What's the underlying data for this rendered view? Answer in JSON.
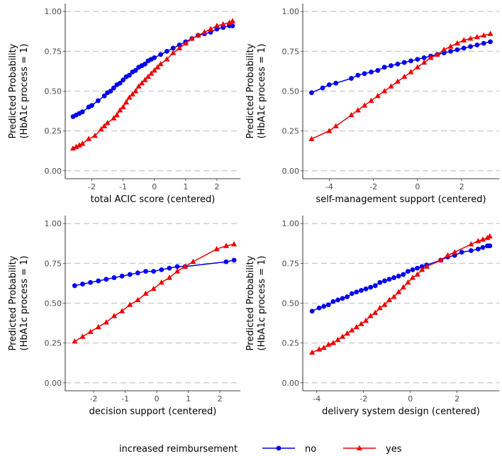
{
  "chart_data": [
    {
      "type": "line",
      "xlabel": "total ACIC score (centered)",
      "ylabel_line1": "Predicted Probability",
      "ylabel_line2": "(HbA1c process = 1)",
      "xticks": [
        -2,
        -1,
        0,
        1,
        2
      ],
      "xtick_labels": [
        "-2",
        "-1",
        "0",
        "1",
        "2"
      ],
      "yticks": [
        0,
        0.25,
        0.5,
        0.75,
        1
      ],
      "ytick_labels": [
        "0.00",
        "0.25",
        "0.50",
        "0.75",
        "1.00"
      ],
      "xlim": [
        -2.85,
        2.75
      ],
      "ylim": [
        -0.05,
        1.05
      ],
      "grid": "horizontal-dashed",
      "series": [
        {
          "name": "no",
          "color": "#0000ee",
          "marker": "circle",
          "x": [
            -2.6,
            -2.5,
            -2.4,
            -2.3,
            -2.1,
            -2.0,
            -1.8,
            -1.6,
            -1.5,
            -1.4,
            -1.3,
            -1.2,
            -1.1,
            -1.0,
            -0.9,
            -0.8,
            -0.7,
            -0.6,
            -0.5,
            -0.4,
            -0.3,
            -0.2,
            -0.1,
            0.0,
            0.2,
            0.4,
            0.6,
            0.8,
            1.0,
            1.2,
            1.4,
            1.6,
            1.8,
            2.0,
            2.2,
            2.4,
            2.5
          ],
          "y": [
            0.34,
            0.35,
            0.36,
            0.37,
            0.4,
            0.41,
            0.44,
            0.47,
            0.49,
            0.5,
            0.52,
            0.54,
            0.55,
            0.57,
            0.59,
            0.6,
            0.62,
            0.63,
            0.65,
            0.66,
            0.67,
            0.69,
            0.7,
            0.71,
            0.73,
            0.75,
            0.77,
            0.79,
            0.81,
            0.83,
            0.85,
            0.86,
            0.87,
            0.89,
            0.9,
            0.91,
            0.91
          ]
        },
        {
          "name": "yes",
          "color": "#ee0000",
          "marker": "triangle",
          "x": [
            -2.6,
            -2.5,
            -2.4,
            -2.3,
            -2.1,
            -1.9,
            -1.7,
            -1.6,
            -1.5,
            -1.3,
            -1.2,
            -1.1,
            -1.0,
            -0.9,
            -0.8,
            -0.7,
            -0.6,
            -0.5,
            -0.4,
            -0.3,
            -0.2,
            -0.1,
            0.0,
            0.1,
            0.2,
            0.4,
            0.6,
            0.8,
            1.0,
            1.2,
            1.4,
            1.6,
            1.8,
            2.0,
            2.2,
            2.4,
            2.5
          ],
          "y": [
            0.14,
            0.15,
            0.16,
            0.17,
            0.2,
            0.22,
            0.26,
            0.28,
            0.3,
            0.33,
            0.35,
            0.38,
            0.4,
            0.43,
            0.46,
            0.48,
            0.5,
            0.53,
            0.55,
            0.57,
            0.59,
            0.61,
            0.63,
            0.65,
            0.67,
            0.7,
            0.74,
            0.77,
            0.8,
            0.83,
            0.85,
            0.87,
            0.89,
            0.91,
            0.92,
            0.93,
            0.94
          ]
        }
      ]
    },
    {
      "type": "line",
      "xlabel": "self-management support (centered)",
      "ylabel_line1": "Predicted Probability",
      "ylabel_line2": "(HbA1c process = 1)",
      "xticks": [
        -4,
        -2,
        0,
        2
      ],
      "xtick_labels": [
        "-4",
        "-2",
        "0",
        "2"
      ],
      "yticks": [
        0,
        0.25,
        0.5,
        0.75,
        1
      ],
      "ytick_labels": [
        "0.00",
        "0.25",
        "0.50",
        "0.75",
        "1.00"
      ],
      "xlim": [
        -5.2,
        3.7
      ],
      "ylim": [
        -0.05,
        1.05
      ],
      "grid": "horizontal-dashed",
      "series": [
        {
          "name": "no",
          "color": "#0000ee",
          "marker": "circle",
          "x": [
            -4.8,
            -4.3,
            -4.0,
            -3.7,
            -3.0,
            -2.7,
            -2.4,
            -2.1,
            -1.8,
            -1.5,
            -1.2,
            -0.9,
            -0.6,
            -0.3,
            0.0,
            0.3,
            0.6,
            0.9,
            1.2,
            1.5,
            1.8,
            2.1,
            2.4,
            2.7,
            3.0,
            3.3
          ],
          "y": [
            0.49,
            0.52,
            0.54,
            0.55,
            0.58,
            0.6,
            0.61,
            0.62,
            0.63,
            0.65,
            0.66,
            0.67,
            0.68,
            0.69,
            0.7,
            0.71,
            0.72,
            0.73,
            0.74,
            0.75,
            0.76,
            0.77,
            0.78,
            0.79,
            0.8,
            0.81
          ]
        },
        {
          "name": "yes",
          "color": "#ee0000",
          "marker": "triangle",
          "x": [
            -4.8,
            -4.0,
            -3.7,
            -3.0,
            -2.7,
            -2.4,
            -2.1,
            -1.8,
            -1.5,
            -1.2,
            -0.9,
            -0.6,
            -0.3,
            0.0,
            0.3,
            0.6,
            0.9,
            1.2,
            1.5,
            1.8,
            2.1,
            2.4,
            2.7,
            3.0,
            3.3
          ],
          "y": [
            0.2,
            0.25,
            0.28,
            0.35,
            0.38,
            0.41,
            0.44,
            0.47,
            0.5,
            0.53,
            0.56,
            0.59,
            0.62,
            0.65,
            0.68,
            0.71,
            0.73,
            0.76,
            0.78,
            0.8,
            0.82,
            0.83,
            0.84,
            0.85,
            0.86
          ]
        }
      ]
    },
    {
      "type": "line",
      "xlabel": "decision support (centered)",
      "ylabel_line1": "Predicted Probability",
      "ylabel_line2": "(HbA1c process = 1)",
      "xticks": [
        -2,
        -1,
        0,
        1,
        2
      ],
      "xtick_labels": [
        "-2",
        "-1",
        "0",
        "1",
        "2"
      ],
      "yticks": [
        0,
        0.25,
        0.5,
        0.75,
        1
      ],
      "ytick_labels": [
        "0.00",
        "0.25",
        "0.50",
        "0.75",
        "1.00"
      ],
      "xlim": [
        -2.9,
        2.65
      ],
      "ylim": [
        -0.05,
        1.05
      ],
      "grid": "horizontal-dashed",
      "series": [
        {
          "name": "no",
          "color": "#0000ee",
          "marker": "circle",
          "x": [
            -2.6,
            -2.35,
            -2.1,
            -1.85,
            -1.6,
            -1.35,
            -1.1,
            -0.85,
            -0.6,
            -0.35,
            -0.1,
            0.15,
            0.4,
            0.65,
            0.9,
            2.2,
            2.45
          ],
          "y": [
            0.61,
            0.62,
            0.63,
            0.64,
            0.65,
            0.66,
            0.67,
            0.68,
            0.69,
            0.7,
            0.7,
            0.71,
            0.72,
            0.73,
            0.73,
            0.76,
            0.77
          ]
        },
        {
          "name": "yes",
          "color": "#ee0000",
          "marker": "triangle",
          "x": [
            -2.6,
            -2.35,
            -2.1,
            -1.85,
            -1.6,
            -1.35,
            -1.1,
            -0.85,
            -0.6,
            -0.35,
            -0.1,
            0.15,
            0.4,
            0.65,
            0.9,
            1.15,
            1.9,
            2.2,
            2.45
          ],
          "y": [
            0.26,
            0.29,
            0.32,
            0.35,
            0.38,
            0.42,
            0.45,
            0.49,
            0.52,
            0.56,
            0.59,
            0.63,
            0.66,
            0.7,
            0.73,
            0.76,
            0.84,
            0.86,
            0.87
          ]
        }
      ]
    },
    {
      "type": "line",
      "xlabel": "delivery system design (centered)",
      "ylabel_line1": "Predicted Probability",
      "ylabel_line2": "(HbA1c process = 1)",
      "xticks": [
        -4,
        -2,
        0,
        2
      ],
      "xtick_labels": [
        "-4",
        "-2",
        "0",
        "2"
      ],
      "yticks": [
        0,
        0.25,
        0.5,
        0.75,
        1
      ],
      "ytick_labels": [
        "0.00",
        "0.25",
        "0.50",
        "0.75",
        "1.00"
      ],
      "xlim": [
        -4.6,
        3.8
      ],
      "ylim": [
        -0.05,
        1.05
      ],
      "grid": "horizontal-dashed",
      "series": [
        {
          "name": "no",
          "color": "#0000ee",
          "marker": "circle",
          "x": [
            -4.2,
            -3.9,
            -3.7,
            -3.5,
            -3.3,
            -3.1,
            -2.9,
            -2.7,
            -2.5,
            -2.3,
            -2.1,
            -1.9,
            -1.7,
            -1.5,
            -1.3,
            -1.1,
            -0.9,
            -0.7,
            -0.5,
            -0.3,
            -0.1,
            0.1,
            0.3,
            0.5,
            0.7,
            1.3,
            1.6,
            1.9,
            2.2,
            2.6,
            2.9,
            3.1,
            3.3,
            3.4
          ],
          "y": [
            0.45,
            0.47,
            0.48,
            0.49,
            0.51,
            0.52,
            0.53,
            0.54,
            0.56,
            0.57,
            0.58,
            0.59,
            0.6,
            0.61,
            0.63,
            0.64,
            0.65,
            0.66,
            0.67,
            0.68,
            0.7,
            0.71,
            0.72,
            0.73,
            0.74,
            0.77,
            0.79,
            0.8,
            0.82,
            0.83,
            0.84,
            0.85,
            0.86,
            0.86
          ]
        },
        {
          "name": "yes",
          "color": "#ee0000",
          "marker": "triangle",
          "x": [
            -4.2,
            -3.9,
            -3.7,
            -3.5,
            -3.3,
            -3.1,
            -2.9,
            -2.7,
            -2.5,
            -2.3,
            -2.1,
            -1.9,
            -1.7,
            -1.5,
            -1.3,
            -1.1,
            -0.9,
            -0.7,
            -0.5,
            -0.3,
            -0.1,
            0.1,
            0.3,
            0.5,
            0.7,
            1.3,
            1.6,
            1.9,
            2.6,
            2.9,
            3.1,
            3.3,
            3.4
          ],
          "y": [
            0.19,
            0.21,
            0.22,
            0.24,
            0.25,
            0.27,
            0.29,
            0.31,
            0.33,
            0.35,
            0.37,
            0.39,
            0.42,
            0.44,
            0.47,
            0.49,
            0.52,
            0.54,
            0.57,
            0.6,
            0.63,
            0.66,
            0.68,
            0.71,
            0.73,
            0.77,
            0.8,
            0.82,
            0.87,
            0.89,
            0.9,
            0.91,
            0.92
          ]
        }
      ]
    }
  ],
  "legend": {
    "title": "increased reimbursement",
    "items": [
      {
        "label": "no",
        "color": "#0000ee",
        "marker": "circle"
      },
      {
        "label": "yes",
        "color": "#ee0000",
        "marker": "triangle"
      }
    ],
    "placement": "bottom"
  }
}
